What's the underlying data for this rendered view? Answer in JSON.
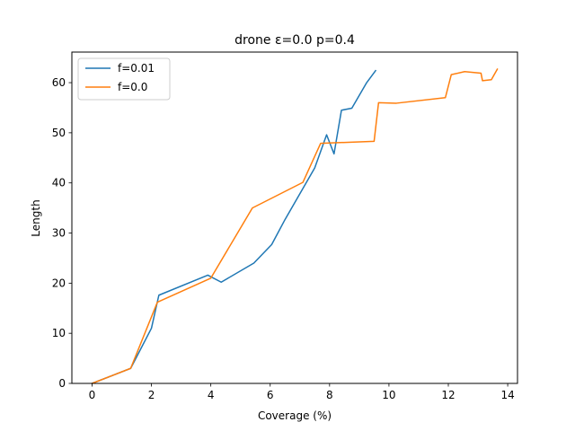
{
  "chart_data": {
    "type": "line",
    "title": "drone ε=0.0 p=0.4",
    "xlabel": "Coverage (%)",
    "ylabel": "Length",
    "xlim": [
      -0.68,
      14.33
    ],
    "ylim": [
      0,
      66.1
    ],
    "xticks": [
      0,
      2,
      4,
      6,
      8,
      10,
      12,
      14
    ],
    "yticks": [
      0,
      10,
      20,
      30,
      40,
      50,
      60
    ],
    "grid": false,
    "legend_position": "top-left",
    "series": [
      {
        "name": "f=0.01",
        "color": "#1f77b4",
        "points": [
          [
            0.0,
            0.0
          ],
          [
            1.3,
            3.0
          ],
          [
            2.0,
            11.0
          ],
          [
            2.25,
            17.6
          ],
          [
            3.9,
            21.6
          ],
          [
            4.35,
            20.2
          ],
          [
            5.45,
            24.0
          ],
          [
            6.05,
            27.7
          ],
          [
            6.5,
            32.7
          ],
          [
            7.5,
            43.0
          ],
          [
            7.9,
            49.6
          ],
          [
            8.15,
            45.8
          ],
          [
            8.4,
            54.5
          ],
          [
            8.75,
            54.9
          ],
          [
            9.25,
            60.0
          ],
          [
            9.55,
            62.4
          ]
        ]
      },
      {
        "name": "f=0.0",
        "color": "#ff7f0e",
        "points": [
          [
            0.0,
            0.0
          ],
          [
            1.3,
            3.0
          ],
          [
            2.2,
            16.2
          ],
          [
            4.0,
            21.0
          ],
          [
            5.4,
            35.0
          ],
          [
            7.1,
            40.1
          ],
          [
            7.7,
            47.9
          ],
          [
            9.5,
            48.3
          ],
          [
            9.65,
            56.0
          ],
          [
            10.25,
            55.9
          ],
          [
            11.9,
            57.0
          ],
          [
            12.1,
            61.6
          ],
          [
            12.55,
            62.2
          ],
          [
            13.1,
            61.9
          ],
          [
            13.15,
            60.4
          ],
          [
            13.45,
            60.6
          ],
          [
            13.65,
            62.7
          ]
        ]
      }
    ]
  }
}
